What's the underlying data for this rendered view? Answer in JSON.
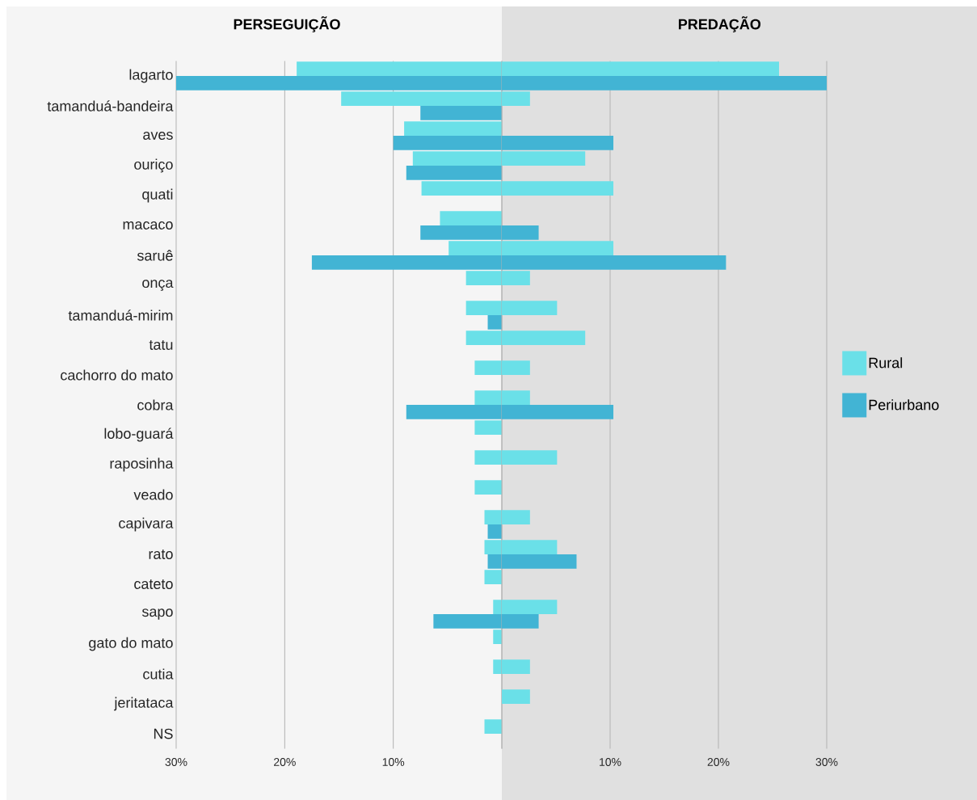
{
  "chart_data": [
    {
      "type": "bar",
      "orientation": "horizontal",
      "title": "PERSEGUIÇÃO",
      "categories": [
        "lagarto",
        "tamanduá-bandeira",
        "aves",
        "ouriço",
        "quati",
        "macaco",
        "saruê",
        "onça",
        "tamanduá-mirim",
        "tatu",
        "cachorro do mato",
        "cobra",
        "lobo-guará",
        "raposinha",
        "veado",
        "capivara",
        "rato",
        "cateto",
        "sapo",
        "gato do mato",
        "cutia",
        "jeritataca",
        "NS"
      ],
      "series": [
        {
          "color": "#6ae0e8",
          "values": [
            18.9,
            14.8,
            9.0,
            8.2,
            7.4,
            5.7,
            4.9,
            3.3,
            3.3,
            3.3,
            2.5,
            2.5,
            2.5,
            2.5,
            2.5,
            1.6,
            1.6,
            1.6,
            0.8,
            0.8,
            0.8,
            null,
            1.6
          ]
        },
        {
          "color": "#42b4d4",
          "values": [
            30,
            7.5,
            10,
            8.8,
            null,
            7.5,
            17.5,
            null,
            1.3,
            null,
            null,
            8.8,
            null,
            null,
            null,
            1.3,
            1.3,
            null,
            6.3,
            null,
            null,
            null,
            null
          ]
        }
      ],
      "xlim": [
        30,
        0
      ],
      "xticks": [
        {
          "value": 30,
          "label": "30%"
        },
        {
          "value": 20,
          "label": "20%"
        },
        {
          "value": 10,
          "label": "10%"
        },
        {
          "value": 0,
          "label": null
        }
      ],
      "grid": "x",
      "legend": false
    },
    {
      "type": "bar",
      "orientation": "horizontal",
      "title": "PREDAÇÃO",
      "categories": [
        null,
        null,
        null,
        null,
        null,
        null,
        null,
        null,
        null,
        null,
        null,
        null,
        null,
        null,
        null,
        null,
        null,
        null,
        null,
        null,
        null,
        null,
        null
      ],
      "series": [
        {
          "name": "Rural",
          "color": "#6ae0e8",
          "values": [
            25.6,
            2.6,
            null,
            7.7,
            10.3,
            null,
            10.3,
            2.6,
            5.1,
            7.7,
            2.6,
            2.6,
            null,
            5.1,
            null,
            2.6,
            5.1,
            null,
            5.1,
            null,
            2.6,
            2.6,
            null
          ]
        },
        {
          "name": "Periurbano",
          "color": "#42b4d4",
          "values": [
            30,
            null,
            10.3,
            null,
            null,
            3.4,
            20.7,
            null,
            null,
            null,
            null,
            10.3,
            null,
            null,
            null,
            null,
            6.9,
            null,
            3.4,
            null,
            null,
            null,
            null
          ]
        }
      ],
      "xlim": [
        0,
        30
      ],
      "xticks": [
        {
          "value": 0,
          "label": null
        },
        {
          "value": 10,
          "label": "10%"
        },
        {
          "value": 20,
          "label": "20%"
        },
        {
          "value": 30,
          "label": "30%"
        }
      ],
      "grid": "x",
      "legend": "right",
      "tick_labels": "x"
    }
  ]
}
